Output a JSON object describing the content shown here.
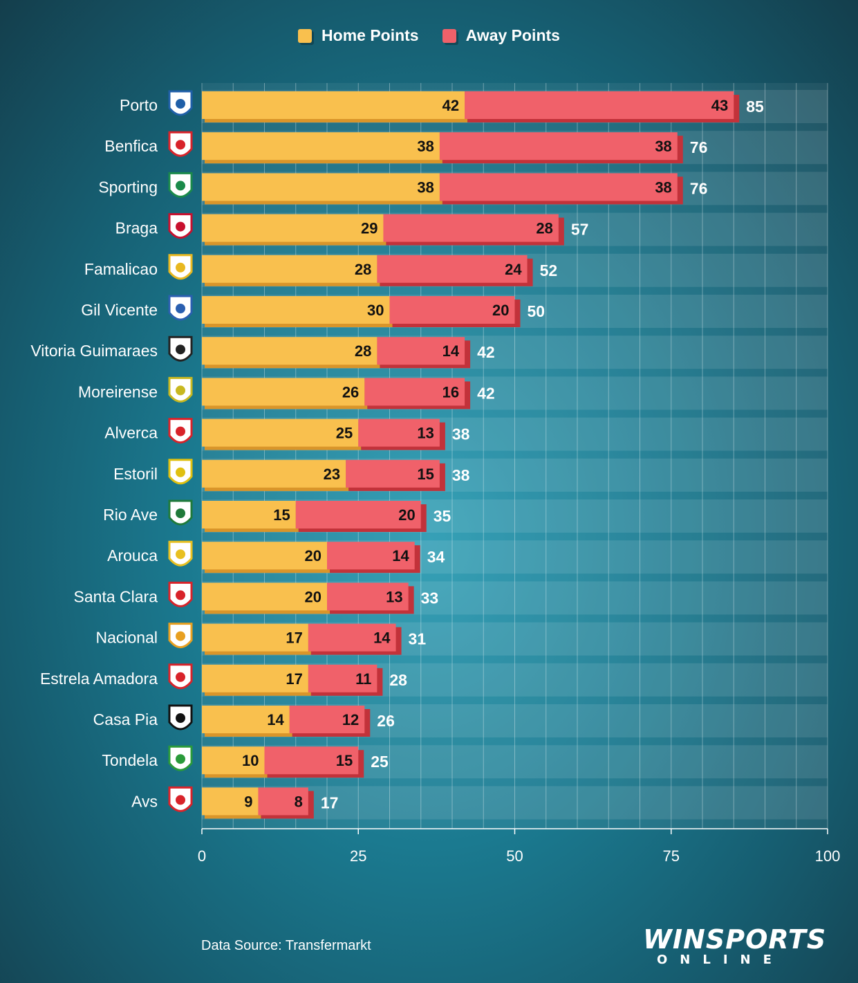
{
  "legend": {
    "home_label": "Home Points",
    "away_label": "Away Points"
  },
  "colors": {
    "home": "#f9c04e",
    "home_shade": "#d9952a",
    "away": "#f0616a",
    "away_shade": "#c2323a"
  },
  "source_text": "Data Source: Transfermarkt",
  "brand": {
    "top": "WINSPORTS",
    "bottom": "ONLINE"
  },
  "chart_data": {
    "type": "bar",
    "orientation": "horizontal",
    "stacked": true,
    "title": "",
    "xlabel": "",
    "ylabel": "",
    "xlim": [
      0,
      100
    ],
    "xticks": [
      0,
      25,
      50,
      75,
      100
    ],
    "grid": true,
    "legend_position": "top-center",
    "categories": [
      "Porto",
      "Benfica",
      "Sporting",
      "Braga",
      "Famalicao",
      "Gil Vicente",
      "Vitoria Guimaraes",
      "Moreirense",
      "Alverca",
      "Estoril",
      "Rio Ave",
      "Arouca",
      "Santa Clara",
      "Nacional",
      "Estrela Amadora",
      "Casa Pia",
      "Tondela",
      "Avs"
    ],
    "series": [
      {
        "name": "Home Points",
        "values": [
          42,
          38,
          38,
          29,
          28,
          30,
          28,
          26,
          25,
          23,
          15,
          20,
          20,
          17,
          17,
          14,
          10,
          9
        ]
      },
      {
        "name": "Away Points",
        "values": [
          43,
          38,
          38,
          28,
          24,
          20,
          14,
          16,
          13,
          15,
          20,
          14,
          13,
          14,
          11,
          12,
          15,
          8
        ]
      }
    ],
    "totals": [
      85,
      76,
      76,
      57,
      52,
      50,
      42,
      42,
      38,
      38,
      35,
      34,
      33,
      31,
      28,
      26,
      25,
      17
    ],
    "logo_icons": [
      "porto-crest-icon",
      "benfica-crest-icon",
      "sporting-crest-icon",
      "braga-crest-icon",
      "famalicao-crest-icon",
      "gil-vicente-crest-icon",
      "vitoria-crest-icon",
      "moreirense-crest-icon",
      "alverca-crest-icon",
      "estoril-crest-icon",
      "rio-ave-crest-icon",
      "arouca-crest-icon",
      "santa-clara-crest-icon",
      "nacional-crest-icon",
      "estrela-crest-icon",
      "casa-pia-crest-icon",
      "tondela-crest-icon",
      "avs-crest-icon"
    ],
    "logo_colors": [
      "#1f5fa8",
      "#d8232a",
      "#1a8a4a",
      "#c8102e",
      "#e8b820",
      "#2a5fb0",
      "#222222",
      "#c8b820",
      "#d8232a",
      "#e0c010",
      "#1f7a3a",
      "#e8c020",
      "#d8232a",
      "#e8a020",
      "#d8232a",
      "#111111",
      "#2a9a3a",
      "#d8232a"
    ]
  }
}
